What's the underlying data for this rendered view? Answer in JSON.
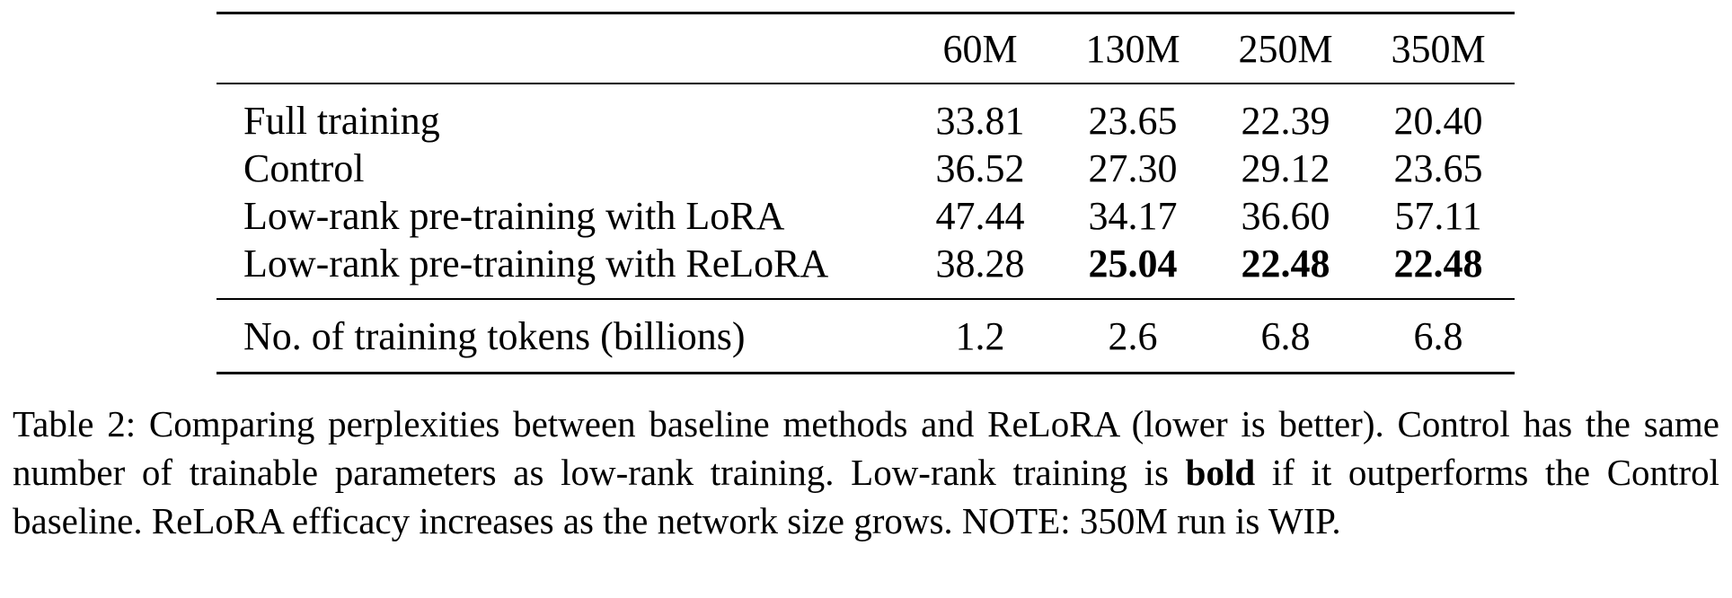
{
  "table": {
    "columns": [
      "",
      "60M",
      "130M",
      "250M",
      "350M"
    ],
    "rows": [
      {
        "label": "Full training",
        "values": [
          "33.81",
          "23.65",
          "22.39",
          "20.40"
        ],
        "bold": [
          false,
          false,
          false,
          false
        ]
      },
      {
        "label": "Control",
        "values": [
          "36.52",
          "27.30",
          "29.12",
          "23.65"
        ],
        "bold": [
          false,
          false,
          false,
          false
        ]
      },
      {
        "label": "Low-rank pre-training with LoRA",
        "values": [
          "47.44",
          "34.17",
          "36.60",
          "57.11"
        ],
        "bold": [
          false,
          false,
          false,
          false
        ]
      },
      {
        "label": "Low-rank pre-training with ReLoRA",
        "values": [
          "38.28",
          "25.04",
          "22.48",
          "22.48"
        ],
        "bold": [
          false,
          true,
          true,
          true
        ]
      }
    ],
    "footer_row": {
      "label": "No. of training tokens (billions)",
      "values": [
        "1.2",
        "2.6",
        "6.8",
        "6.8"
      ]
    }
  },
  "caption": {
    "part1": "Table 2: Comparing perplexities between baseline methods and ReLoRA (lower is better). Control has the same number of trainable parameters as low-rank training. Low-rank training is ",
    "bold_word": "bold",
    "part2": " if it outperforms the Control baseline. ReLoRA efficacy increases as the network size grows. NOTE: 350M run is WIP."
  }
}
